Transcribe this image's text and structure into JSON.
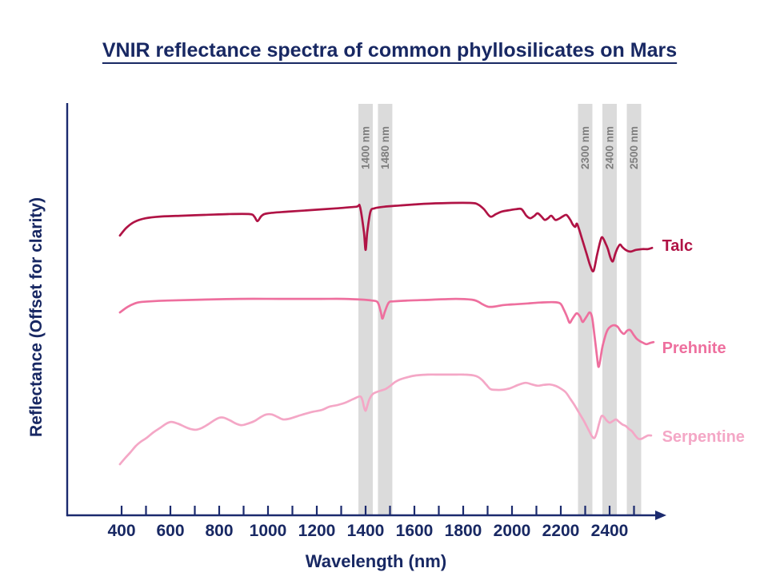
{
  "title": "VNIR reflectance spectra of common phyllosilicates on Mars",
  "colors": {
    "text_navy": "#182863",
    "axis": "#1b2a6e",
    "band_fill": "#dbdbdb",
    "band_label": "#7e7e7e",
    "talc": "#b01345",
    "prehnite": "#ee6f9e",
    "serpentine": "#f4a7c6"
  },
  "chart_data": {
    "type": "line",
    "title": "VNIR reflectance spectra of common phyllosilicates on Mars",
    "xlabel": "Wavelength (nm)",
    "ylabel": "Reflectance (Offset for clarity)",
    "y_unit": "arbitrary offset units (0-100, offset for clarity; no numeric y ticks shown)",
    "grid": false,
    "x_axis": {
      "tick_step_nm": 100,
      "tick_range_nm": [
        400,
        2500
      ],
      "labeled_ticks_nm": [
        400,
        600,
        800,
        1000,
        1200,
        1400,
        1600,
        1800,
        2000,
        2200,
        2400
      ],
      "arrow_at_max": true
    },
    "highlight_bands": [
      {
        "nm": 1400,
        "label": "1400 nm"
      },
      {
        "nm": 1480,
        "label": "1480 nm"
      },
      {
        "nm": 2300,
        "label": "2300 nm"
      },
      {
        "nm": 2400,
        "label": "2400 nm"
      },
      {
        "nm": 2500,
        "label": "2500 nm"
      }
    ],
    "legend_position": "right-of-curves",
    "series": [
      {
        "name": "Talc",
        "color": "#b01345",
        "label_x_nm": 2615,
        "label_y_au": 65.6,
        "points": [
          [
            393,
            68.0
          ],
          [
            420,
            69.9
          ],
          [
            452,
            71.3
          ],
          [
            498,
            72.2
          ],
          [
            557,
            72.6
          ],
          [
            639,
            72.8
          ],
          [
            738,
            73.0
          ],
          [
            836,
            73.2
          ],
          [
            925,
            73.2
          ],
          [
            944,
            72.6
          ],
          [
            957,
            71.5
          ],
          [
            974,
            72.8
          ],
          [
            1000,
            73.4
          ],
          [
            1082,
            73.8
          ],
          [
            1180,
            74.2
          ],
          [
            1279,
            74.6
          ],
          [
            1361,
            75.0
          ],
          [
            1377,
            75.0
          ],
          [
            1393,
            68.9
          ],
          [
            1400,
            64.5
          ],
          [
            1407,
            68.9
          ],
          [
            1420,
            73.8
          ],
          [
            1436,
            74.6
          ],
          [
            1475,
            75.0
          ],
          [
            1541,
            75.3
          ],
          [
            1639,
            75.7
          ],
          [
            1738,
            75.9
          ],
          [
            1836,
            75.9
          ],
          [
            1862,
            75.5
          ],
          [
            1885,
            74.4
          ],
          [
            1911,
            72.6
          ],
          [
            1934,
            73.2
          ],
          [
            1957,
            73.8
          ],
          [
            1993,
            74.2
          ],
          [
            2016,
            74.4
          ],
          [
            2039,
            74.4
          ],
          [
            2059,
            72.8
          ],
          [
            2075,
            72.2
          ],
          [
            2092,
            72.8
          ],
          [
            2105,
            73.4
          ],
          [
            2121,
            72.6
          ],
          [
            2134,
            71.8
          ],
          [
            2148,
            72.2
          ],
          [
            2161,
            72.8
          ],
          [
            2177,
            71.8
          ],
          [
            2190,
            72.0
          ],
          [
            2207,
            72.6
          ],
          [
            2223,
            73.0
          ],
          [
            2239,
            71.8
          ],
          [
            2249,
            70.7
          ],
          [
            2259,
            70.1
          ],
          [
            2266,
            70.9
          ],
          [
            2275,
            69.5
          ],
          [
            2285,
            67.6
          ],
          [
            2305,
            63.7
          ],
          [
            2321,
            60.6
          ],
          [
            2334,
            59.4
          ],
          [
            2348,
            63.1
          ],
          [
            2361,
            66.4
          ],
          [
            2370,
            67.6
          ],
          [
            2384,
            66.0
          ],
          [
            2393,
            64.7
          ],
          [
            2403,
            62.7
          ],
          [
            2413,
            61.7
          ],
          [
            2423,
            63.5
          ],
          [
            2433,
            65.0
          ],
          [
            2443,
            65.8
          ],
          [
            2452,
            65.2
          ],
          [
            2466,
            64.5
          ],
          [
            2485,
            64.1
          ],
          [
            2508,
            64.5
          ],
          [
            2534,
            64.7
          ],
          [
            2557,
            64.7
          ],
          [
            2574,
            65.0
          ]
        ]
      },
      {
        "name": "Prehnite",
        "color": "#ee6f9e",
        "label_x_nm": 2615,
        "label_y_au": 40.8,
        "points": [
          [
            393,
            49.3
          ],
          [
            426,
            50.7
          ],
          [
            466,
            51.7
          ],
          [
            518,
            52.0
          ],
          [
            590,
            52.2
          ],
          [
            721,
            52.4
          ],
          [
            885,
            52.6
          ],
          [
            1049,
            52.6
          ],
          [
            1213,
            52.6
          ],
          [
            1311,
            52.6
          ],
          [
            1393,
            52.4
          ],
          [
            1426,
            52.2
          ],
          [
            1449,
            51.8
          ],
          [
            1462,
            49.5
          ],
          [
            1469,
            47.8
          ],
          [
            1479,
            49.5
          ],
          [
            1495,
            51.7
          ],
          [
            1515,
            52.0
          ],
          [
            1574,
            52.2
          ],
          [
            1672,
            52.4
          ],
          [
            1770,
            52.6
          ],
          [
            1836,
            52.4
          ],
          [
            1859,
            52.0
          ],
          [
            1879,
            51.3
          ],
          [
            1902,
            50.7
          ],
          [
            1925,
            50.7
          ],
          [
            1967,
            51.1
          ],
          [
            2016,
            51.3
          ],
          [
            2066,
            51.5
          ],
          [
            2115,
            51.7
          ],
          [
            2164,
            51.8
          ],
          [
            2197,
            51.5
          ],
          [
            2213,
            49.9
          ],
          [
            2226,
            48.2
          ],
          [
            2236,
            46.8
          ],
          [
            2246,
            47.6
          ],
          [
            2256,
            48.5
          ],
          [
            2266,
            49.1
          ],
          [
            2279,
            48.3
          ],
          [
            2289,
            47.0
          ],
          [
            2298,
            47.6
          ],
          [
            2308,
            48.5
          ],
          [
            2318,
            49.3
          ],
          [
            2328,
            48.2
          ],
          [
            2338,
            43.7
          ],
          [
            2348,
            38.8
          ],
          [
            2354,
            36.1
          ],
          [
            2361,
            37.5
          ],
          [
            2370,
            40.8
          ],
          [
            2384,
            43.9
          ],
          [
            2393,
            45.2
          ],
          [
            2407,
            46.0
          ],
          [
            2420,
            46.2
          ],
          [
            2433,
            45.8
          ],
          [
            2446,
            44.7
          ],
          [
            2459,
            44.1
          ],
          [
            2472,
            44.9
          ],
          [
            2485,
            45.0
          ],
          [
            2498,
            43.9
          ],
          [
            2511,
            42.9
          ],
          [
            2525,
            42.3
          ],
          [
            2538,
            41.9
          ],
          [
            2551,
            41.6
          ],
          [
            2567,
            41.9
          ],
          [
            2580,
            42.1
          ]
        ]
      },
      {
        "name": "Serpentine",
        "color": "#f4a7c6",
        "label_x_nm": 2615,
        "label_y_au": 19.2,
        "points": [
          [
            393,
            12.4
          ],
          [
            413,
            13.8
          ],
          [
            436,
            15.3
          ],
          [
            459,
            16.9
          ],
          [
            479,
            17.9
          ],
          [
            502,
            18.8
          ],
          [
            531,
            20.2
          ],
          [
            557,
            21.2
          ],
          [
            584,
            22.3
          ],
          [
            603,
            22.7
          ],
          [
            630,
            22.3
          ],
          [
            656,
            21.6
          ],
          [
            682,
            21.0
          ],
          [
            705,
            20.8
          ],
          [
            728,
            21.2
          ],
          [
            754,
            22.1
          ],
          [
            780,
            23.1
          ],
          [
            800,
            23.7
          ],
          [
            820,
            23.7
          ],
          [
            843,
            23.1
          ],
          [
            869,
            22.3
          ],
          [
            892,
            21.9
          ],
          [
            918,
            22.3
          ],
          [
            944,
            22.9
          ],
          [
            971,
            23.9
          ],
          [
            993,
            24.5
          ],
          [
            1016,
            24.5
          ],
          [
            1039,
            23.9
          ],
          [
            1062,
            23.3
          ],
          [
            1089,
            23.5
          ],
          [
            1121,
            24.1
          ],
          [
            1154,
            24.7
          ],
          [
            1187,
            25.2
          ],
          [
            1220,
            25.6
          ],
          [
            1252,
            26.4
          ],
          [
            1285,
            26.8
          ],
          [
            1318,
            27.4
          ],
          [
            1351,
            28.3
          ],
          [
            1377,
            28.9
          ],
          [
            1387,
            28.0
          ],
          [
            1393,
            26.4
          ],
          [
            1400,
            25.4
          ],
          [
            1407,
            26.6
          ],
          [
            1416,
            28.3
          ],
          [
            1430,
            29.5
          ],
          [
            1443,
            29.9
          ],
          [
            1462,
            30.3
          ],
          [
            1482,
            30.7
          ],
          [
            1502,
            31.5
          ],
          [
            1521,
            32.4
          ],
          [
            1541,
            33.0
          ],
          [
            1574,
            33.6
          ],
          [
            1607,
            34.0
          ],
          [
            1656,
            34.2
          ],
          [
            1705,
            34.2
          ],
          [
            1754,
            34.2
          ],
          [
            1803,
            34.2
          ],
          [
            1843,
            34.0
          ],
          [
            1862,
            33.6
          ],
          [
            1879,
            32.8
          ],
          [
            1895,
            31.7
          ],
          [
            1911,
            30.7
          ],
          [
            1928,
            30.5
          ],
          [
            1961,
            30.5
          ],
          [
            1993,
            30.9
          ],
          [
            2026,
            31.7
          ],
          [
            2056,
            32.2
          ],
          [
            2082,
            31.8
          ],
          [
            2105,
            31.5
          ],
          [
            2131,
            31.7
          ],
          [
            2154,
            31.8
          ],
          [
            2177,
            31.5
          ],
          [
            2197,
            30.9
          ],
          [
            2220,
            29.9
          ],
          [
            2239,
            28.3
          ],
          [
            2256,
            26.8
          ],
          [
            2275,
            24.9
          ],
          [
            2295,
            22.9
          ],
          [
            2315,
            20.6
          ],
          [
            2328,
            19.2
          ],
          [
            2338,
            18.8
          ],
          [
            2348,
            20.2
          ],
          [
            2357,
            22.3
          ],
          [
            2367,
            24.1
          ],
          [
            2377,
            23.9
          ],
          [
            2387,
            23.1
          ],
          [
            2400,
            22.5
          ],
          [
            2413,
            22.9
          ],
          [
            2426,
            23.3
          ],
          [
            2439,
            22.7
          ],
          [
            2452,
            22.1
          ],
          [
            2466,
            21.7
          ],
          [
            2479,
            21.0
          ],
          [
            2492,
            20.4
          ],
          [
            2505,
            19.4
          ],
          [
            2518,
            18.6
          ],
          [
            2531,
            18.6
          ],
          [
            2544,
            19.0
          ],
          [
            2557,
            19.4
          ],
          [
            2570,
            19.4
          ]
        ]
      }
    ]
  }
}
